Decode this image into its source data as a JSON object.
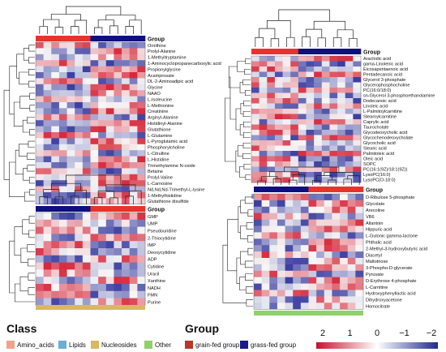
{
  "chart_data": [
    {
      "type": "heatmap",
      "class": "Amino_acids",
      "group_header": "Group",
      "columns": {
        "grain_fed": 7,
        "grass_fed": 7
      },
      "rows": [
        "Ornithine",
        "Prolyl-Alanine",
        "1-Methyltryptamine",
        "1-Aminocyclopropanecarboxylic acid",
        "Propionylglycine",
        "Acamprosate",
        "DL-2-Aminoadipic acid",
        "Glycine",
        "NAAO",
        "L-Isoleucine",
        "L-Methionine",
        "Creatinine",
        "Arginyl-Alanine",
        "Histidinyl-Alanine",
        "Glutathione",
        "L-Glutamine",
        "L-Pyroglutamic acid",
        "Phosphorylcholine",
        "L-Citrulline",
        "L-Histidine",
        "Trimethylamine N-oxide",
        "Betaine",
        "Prolyl-Valine",
        "L-Carnosine",
        "Nd,Nd,Nd-Trimethyl-L-lysine",
        "1-Methylhistidine",
        "Glutathione disulfide"
      ]
    },
    {
      "type": "heatmap",
      "class": "Lipids",
      "group_header": "Group",
      "columns": {
        "grain_fed": 6,
        "grass_fed": 8
      },
      "rows": [
        "Arachidic acid",
        "gama-Linolenic acid",
        "Eicosapentaenoic acid",
        "Pentadecanoic acid",
        "Glycerol 3-phosphate",
        "Glycerophosphocholine",
        "PC(16:0/18:0)",
        "sn-Glycerol 3-phosphoethanolamine",
        "Dodecanoic acid",
        "Linoleic acid",
        "L-Palmitoylcarnitine",
        "Stearoylcarnitine",
        "Caprylic acid",
        "Taurocholate",
        "Glycodeoxycholic acid",
        "Glycochenodeoxycholate",
        "Glycocholic acid",
        "Stearic acid",
        "Palmitoleic acid",
        "Oleic acid",
        "SOPC",
        "PC(16:1(9Z)/18:1(9Z))",
        "LysoPC(16:0)",
        "LysoPC(O-18:0)"
      ]
    },
    {
      "type": "heatmap",
      "class": "Nucleosides",
      "group_header": "Group",
      "columns": {
        "grass_fed": 7,
        "grain_fed": 7
      },
      "rows": [
        "GMP",
        "UMP",
        "Pseudouridine",
        "2-Thiocytidine",
        "IMP",
        "Deoxycytidine",
        "ADP",
        "Cytidine",
        "Uracil",
        "Xanthine",
        "NADH",
        "FMN",
        "Purine"
      ]
    },
    {
      "type": "heatmap",
      "class": "Other",
      "group_header": "Group",
      "columns": {
        "grass_fed": 7,
        "grain_fed": 7
      },
      "rows": [
        "D-Ribulose 5-phosphate",
        "Glycolate",
        "Arecoline",
        "VB6",
        "Allantoin",
        "Hippuric acid",
        "L-Gulonic gamma-lactone",
        "Phthalic acid",
        "2-Methyl-3-hydroxybutyric acid",
        "Diacetyl",
        "Maltotriose",
        "3-Phospho-D-glycerate",
        "Pyruvate",
        "D-Erythrose 4-phosphate",
        "L-Carnitine",
        "Hydroxyphenyllactic acid",
        "Dihydroxyacetone",
        "Homocitrate"
      ]
    }
  ],
  "legend": {
    "class_title": "Class",
    "classes": [
      {
        "label": "Amino_acids",
        "color": "#f2a48a"
      },
      {
        "label": "Lipids",
        "color": "#6aaed6"
      },
      {
        "label": "Nucleosides",
        "color": "#d9b860"
      },
      {
        "label": "Other",
        "color": "#8fd16a"
      }
    ],
    "group_title": "Group",
    "groups": [
      {
        "label": "grain-fed group",
        "color": "#b5392a"
      },
      {
        "label": "grass-fed group",
        "color": "#1a1a8a"
      }
    ],
    "scale_ticks": [
      "2",
      "1",
      "0",
      "−1",
      "−2"
    ],
    "scale_colors": [
      "#c8102e",
      "#ffffff",
      "#1f2a8c"
    ]
  },
  "colors": {
    "grain_fed_bar": "#e8332b",
    "grass_fed_bar": "#0f0f80",
    "heat_high": "#d7283a",
    "heat_mid": "#f7f7f7",
    "heat_low": "#3a3ea0"
  }
}
